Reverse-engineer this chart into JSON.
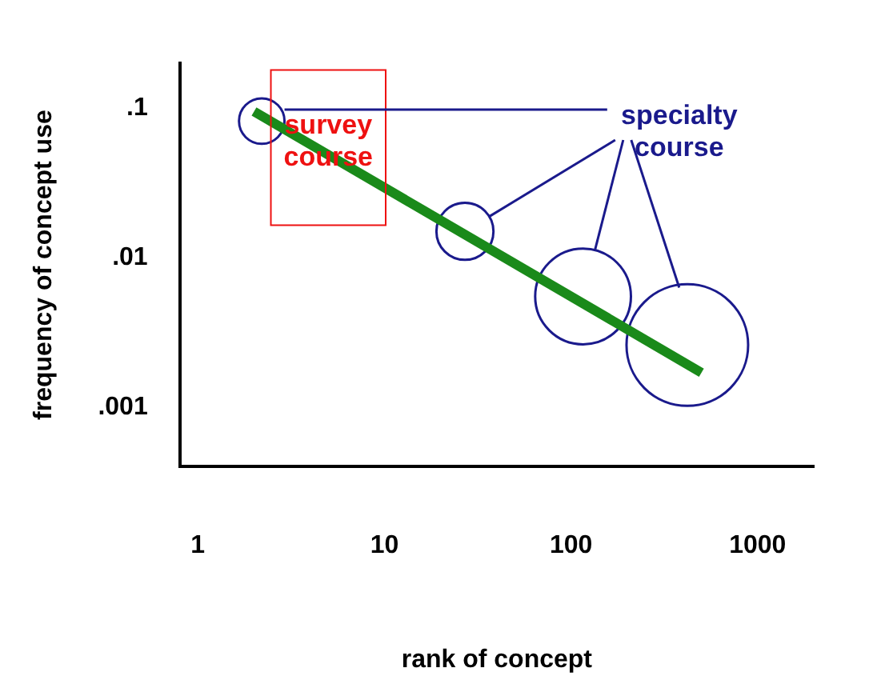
{
  "chart_data": {
    "type": "line",
    "xlabel": "rank of concept",
    "ylabel": "frequency of concept use",
    "log": "xy",
    "xlim": [
      0.8,
      2000
    ],
    "ylim": [
      0.0004,
      0.2
    ],
    "xticks": [
      1,
      10,
      100,
      1000
    ],
    "yticks": [
      {
        "value": 0.1,
        "label": ".1"
      },
      {
        "value": 0.01,
        "label": ".01"
      },
      {
        "value": 0.001,
        "label": ".001"
      }
    ],
    "grid": false,
    "legend": false,
    "line_style": "solid",
    "series": [
      {
        "color": "#1a8a1a",
        "x": [
          2,
          500
        ],
        "values": [
          0.095,
          0.0017
        ]
      },
      {
        "type": "bubble",
        "color": "#1a1a8c",
        "x": [
          2.2,
          27,
          116,
          420
        ],
        "values": [
          0.082,
          0.015,
          0.0055,
          0.0026
        ],
        "sizes": [
          0.14,
          0.22,
          0.62,
          1
        ]
      }
    ],
    "annotations": [
      {
        "text": "survey course",
        "x": 5,
        "y": 0.05
      },
      {
        "text": "specialty course",
        "x": 380,
        "y": 0.0063
      }
    ]
  }
}
